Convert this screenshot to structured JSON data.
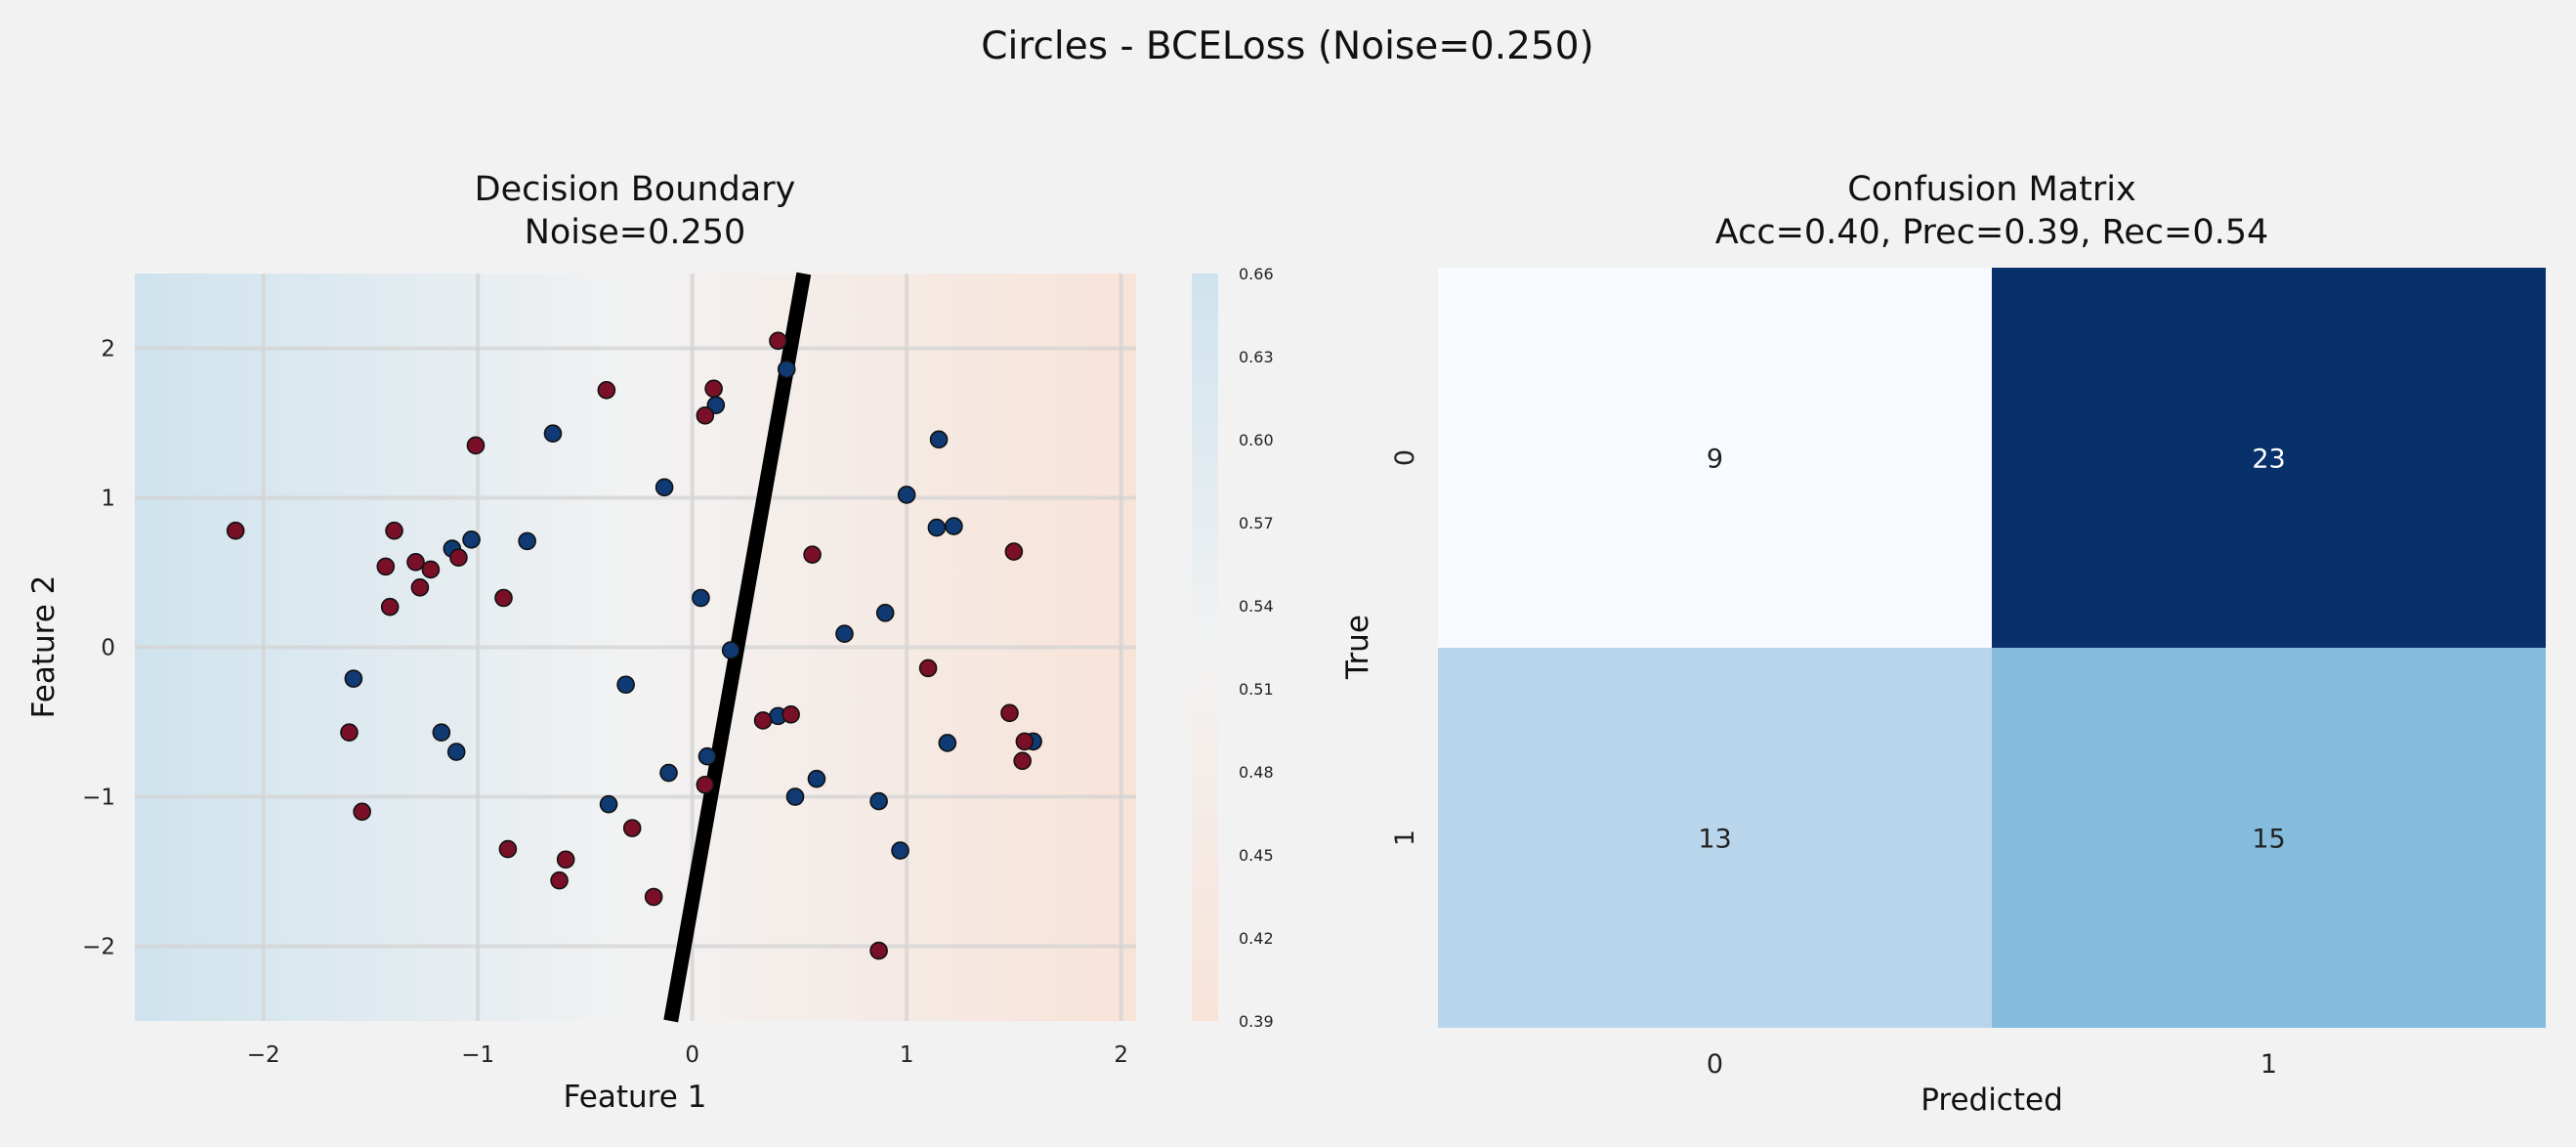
{
  "figure": {
    "suptitle": "Circles - BCELoss (Noise=0.250)"
  },
  "colors": {
    "background": "#f2f2f2",
    "class0_point": "#0f3a73",
    "class1_point": "#7a0f28",
    "boundary_line": "#000000",
    "cm_low": "#f7fbff",
    "cm_high": "#08306b",
    "field_high": "#cfe3ee",
    "field_mid": "#f2f2f2",
    "field_low": "#f8e3d8"
  },
  "chart_data": [
    {
      "type": "scatter",
      "title": "Decision Boundary\nNoise=0.250",
      "title_lines": [
        "Decision Boundary",
        "Noise=0.250"
      ],
      "xlabel": "Feature 1",
      "ylabel": "Feature 2",
      "xlim": [
        -2.6,
        2.07
      ],
      "ylim": [
        -2.5,
        2.5
      ],
      "xticks": [
        -2,
        -1,
        0,
        1,
        2
      ],
      "yticks": [
        -2,
        -1,
        0,
        1,
        2
      ],
      "grid": true,
      "background_field": "predicted probability, blue on the left (0.66) to orange on the right (0.39)",
      "decision_boundary": [
        [
          -0.1,
          -2.5
        ],
        [
          0.52,
          2.5
        ]
      ],
      "colorbar": {
        "range": [
          0.39,
          0.66
        ],
        "ticks": [
          0.39,
          0.42,
          0.45,
          0.48,
          0.51,
          0.54,
          0.57,
          0.6,
          0.63,
          0.66
        ],
        "tick_labels": [
          "0.39",
          "0.42",
          "0.45",
          "0.48",
          "0.51",
          "0.54",
          "0.57",
          "0.60",
          "0.63",
          "0.66"
        ]
      },
      "series": [
        {
          "class": 0,
          "points": [
            [
              -0.65,
              1.43
            ],
            [
              -1.03,
              0.72
            ],
            [
              -1.12,
              0.66
            ],
            [
              -0.77,
              0.71
            ],
            [
              -1.58,
              -0.21
            ],
            [
              -1.17,
              -0.57
            ],
            [
              -1.1,
              -0.7
            ],
            [
              -0.31,
              -0.25
            ],
            [
              -0.13,
              1.07
            ],
            [
              0.11,
              1.62
            ],
            [
              0.44,
              1.86
            ],
            [
              0.04,
              0.33
            ],
            [
              0.18,
              -0.02
            ],
            [
              0.4,
              -0.46
            ],
            [
              0.07,
              -0.73
            ],
            [
              -0.11,
              -0.84
            ],
            [
              -0.39,
              -1.05
            ],
            [
              0.48,
              -1.0
            ],
            [
              0.58,
              -0.88
            ],
            [
              0.71,
              0.09
            ],
            [
              0.9,
              0.23
            ],
            [
              1.0,
              1.02
            ],
            [
              1.15,
              1.39
            ],
            [
              1.14,
              0.8
            ],
            [
              1.22,
              0.81
            ],
            [
              1.19,
              -0.64
            ],
            [
              0.87,
              -1.03
            ],
            [
              0.97,
              -1.36
            ],
            [
              1.59,
              -0.63
            ]
          ]
        },
        {
          "class": 1,
          "points": [
            [
              -2.13,
              0.78
            ],
            [
              -1.39,
              0.78
            ],
            [
              -1.43,
              0.54
            ],
            [
              -1.29,
              0.57
            ],
            [
              -1.22,
              0.52
            ],
            [
              -1.09,
              0.6
            ],
            [
              -1.27,
              0.4
            ],
            [
              -1.41,
              0.27
            ],
            [
              -0.88,
              0.33
            ],
            [
              -1.01,
              1.35
            ],
            [
              -0.4,
              1.72
            ],
            [
              0.06,
              1.55
            ],
            [
              0.1,
              1.73
            ],
            [
              0.4,
              2.05
            ],
            [
              0.56,
              0.62
            ],
            [
              1.5,
              0.64
            ],
            [
              1.1,
              -0.14
            ],
            [
              0.33,
              -0.49
            ],
            [
              0.46,
              -0.45
            ],
            [
              1.48,
              -0.44
            ],
            [
              1.55,
              -0.63
            ],
            [
              1.54,
              -0.76
            ],
            [
              -1.6,
              -0.57
            ],
            [
              -1.54,
              -1.1
            ],
            [
              0.06,
              -0.92
            ],
            [
              -0.28,
              -1.21
            ],
            [
              -0.86,
              -1.35
            ],
            [
              -0.59,
              -1.42
            ],
            [
              -0.62,
              -1.56
            ],
            [
              -0.18,
              -1.67
            ],
            [
              0.87,
              -2.03
            ]
          ]
        }
      ]
    },
    {
      "type": "heatmap",
      "title": "Confusion Matrix\nAcc=0.40, Prec=0.39, Rec=0.54",
      "title_lines": [
        "Confusion Matrix",
        "Acc=0.40, Prec=0.39, Rec=0.54"
      ],
      "xlabel": "Predicted",
      "ylabel": "True",
      "x_categories": [
        "0",
        "1"
      ],
      "y_categories": [
        "0",
        "1"
      ],
      "values": [
        [
          9,
          23
        ],
        [
          13,
          15
        ]
      ],
      "value_labels": [
        [
          "9",
          "23"
        ],
        [
          "13",
          "15"
        ]
      ],
      "colorbar": false
    }
  ]
}
